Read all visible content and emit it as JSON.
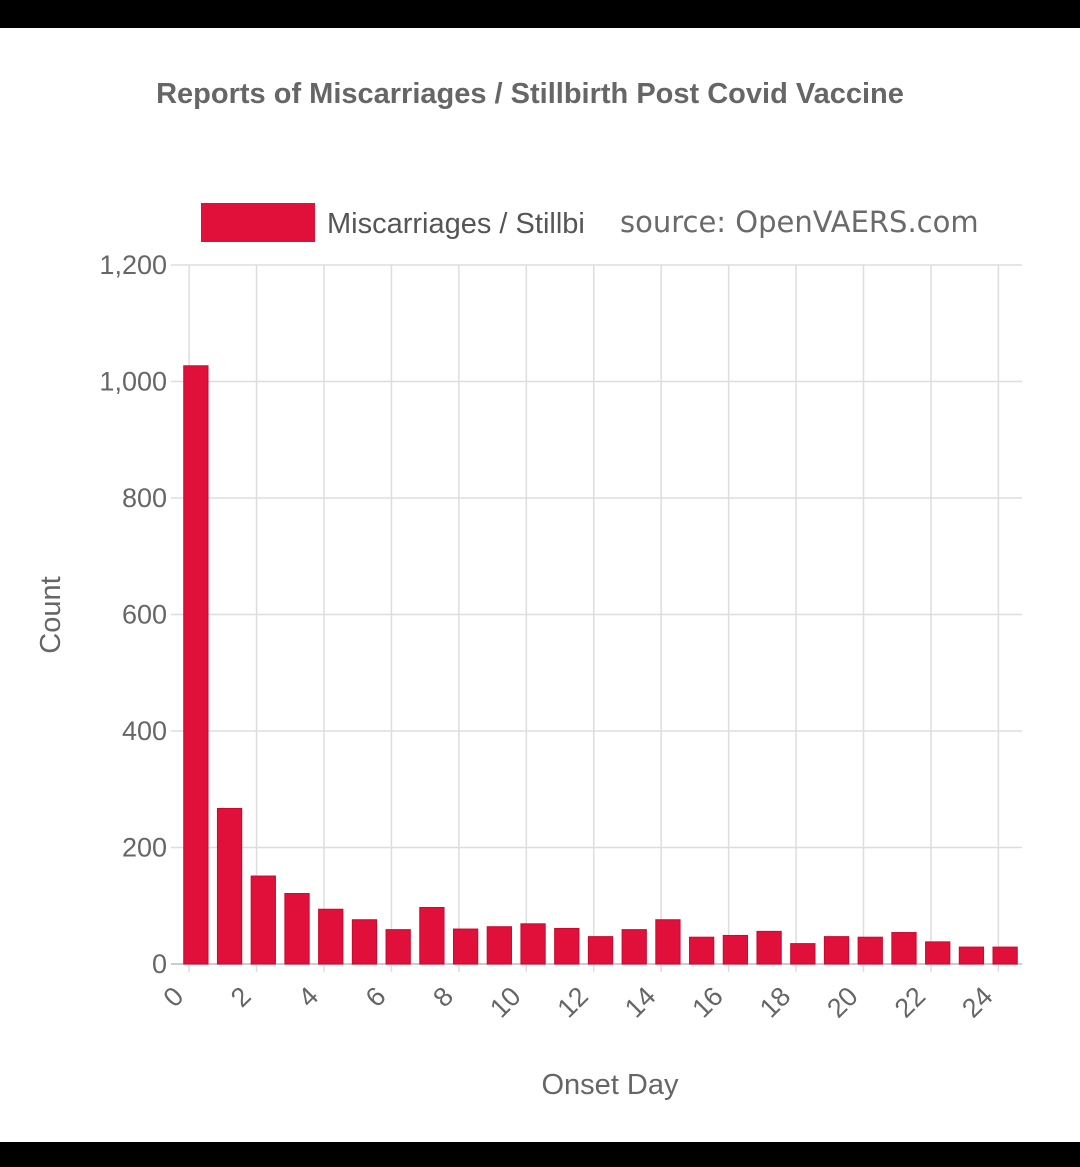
{
  "colors": {
    "bar": "#e0103a",
    "grid": "#dddddd",
    "text": "#666666",
    "background": "#ffffff"
  },
  "chart_data": {
    "type": "bar",
    "title": "Reports of Miscarriages / Stillbirth Post Covid Vaccine",
    "xlabel": "Onset Day",
    "ylabel": "Count",
    "ylim": [
      0,
      1200
    ],
    "yticks": [
      "0",
      "200",
      "400",
      "600",
      "800",
      "1,000",
      "1,200"
    ],
    "xticks": [
      "0",
      "2",
      "4",
      "6",
      "8",
      "10",
      "12",
      "14",
      "16",
      "18",
      "20",
      "22",
      "24"
    ],
    "grid": true,
    "legend_position": "top",
    "categories": [
      0,
      1,
      2,
      3,
      4,
      5,
      6,
      7,
      8,
      9,
      10,
      11,
      12,
      13,
      14,
      15,
      16,
      17,
      18,
      19,
      20,
      21,
      22,
      23,
      24
    ],
    "series": [
      {
        "name": "Miscarriages / Stillbi",
        "values": [
          1027,
          267,
          151,
          121,
          94,
          76,
          59,
          97,
          60,
          64,
          69,
          61,
          47,
          59,
          76,
          46,
          49,
          56,
          35,
          47,
          46,
          54,
          38,
          29,
          29
        ]
      }
    ]
  },
  "watermark": "source: OpenVAERS.com"
}
